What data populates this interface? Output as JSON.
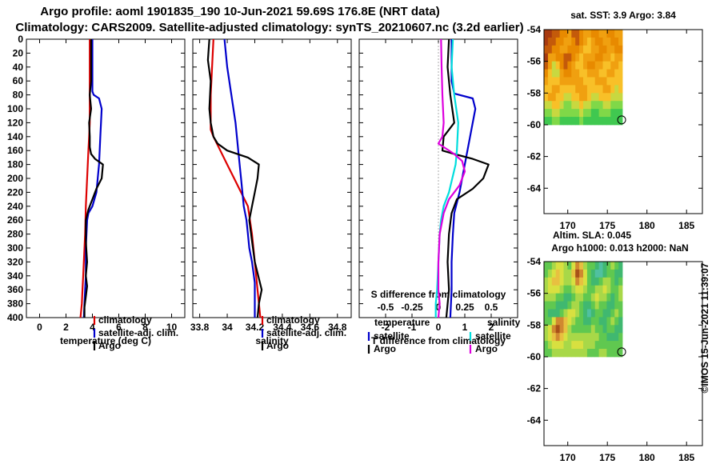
{
  "title_line1": "Argo profile: aoml 1901835_190 10-Jun-2021 59.69S 176.8E (NRT data)",
  "title_line2": "Climatology: CARS2009. Satellite-adjusted climatology: synTS_20210607.nc (3.2d earlier)",
  "credit": "©IMOS 15-Jun-2021 11:39:07",
  "colors": {
    "climatology": "#dd0000",
    "satellite": "#0000cc",
    "argo": "#000000",
    "sat_salinity": "#00dddd",
    "argo_salinity": "#dd00dd"
  },
  "chart_data": [
    {
      "type": "line",
      "name": "temperature-profile",
      "xlabel": "temperature (deg C)",
      "ylabel": "",
      "xlim": [
        -1,
        11
      ],
      "ylim": [
        400,
        0
      ],
      "xticks": [
        0,
        2,
        4,
        6,
        8,
        10
      ],
      "xtick_labels": [
        "0",
        "2",
        "4",
        "6",
        "8",
        "10"
      ],
      "yticks": [
        0,
        20,
        40,
        60,
        80,
        100,
        120,
        140,
        160,
        180,
        200,
        220,
        240,
        260,
        280,
        300,
        320,
        340,
        360,
        380,
        400
      ],
      "ytick_labels": [
        "0",
        "20",
        "40",
        "60",
        "80",
        "100",
        "120",
        "140",
        "160",
        "180",
        "200",
        "220",
        "240",
        "260",
        "280",
        "300",
        "320",
        "340",
        "360",
        "380",
        "400"
      ],
      "legend": [
        "climatology",
        "satellite-adj. clim.",
        "Argo"
      ],
      "series": [
        {
          "name": "climatology",
          "color": "#dd0000",
          "x": [
            3.8,
            3.8,
            3.8,
            3.8,
            3.75,
            3.7,
            3.6,
            3.5,
            3.45,
            3.4,
            3.35,
            3.3,
            3.25,
            3.2,
            3.1
          ],
          "y": [
            0,
            50,
            100,
            120,
            140,
            160,
            200,
            240,
            280,
            300,
            320,
            340,
            360,
            380,
            400
          ]
        },
        {
          "name": "satellite-adj. clim.",
          "color": "#0000cc",
          "x": [
            4.0,
            4.0,
            4.0,
            4.1,
            4.5,
            4.7,
            4.6,
            4.5,
            4.3,
            4.0,
            3.7,
            3.6,
            3.55,
            3.5,
            3.5,
            3.5,
            3.45,
            3.4,
            3.35
          ],
          "y": [
            0,
            40,
            75,
            80,
            85,
            100,
            140,
            180,
            220,
            240,
            250,
            260,
            280,
            300,
            320,
            340,
            360,
            380,
            400
          ]
        },
        {
          "name": "Argo",
          "color": "#000000",
          "x": [
            3.9,
            3.9,
            3.9,
            3.8,
            3.9,
            3.75,
            3.8,
            3.8,
            3.9,
            4.2,
            4.8,
            4.7,
            4.3,
            4.0,
            3.7,
            3.5,
            3.5,
            3.6,
            3.5,
            3.6,
            3.5,
            3.4,
            3.4
          ],
          "y": [
            0,
            30,
            60,
            80,
            100,
            120,
            140,
            155,
            165,
            172,
            180,
            200,
            215,
            230,
            245,
            260,
            290,
            320,
            340,
            355,
            370,
            385,
            400
          ]
        }
      ]
    },
    {
      "type": "line",
      "name": "salinity-profile",
      "xlabel": "salinity",
      "ylabel": "",
      "xlim": [
        33.75,
        34.9
      ],
      "ylim": [
        400,
        0
      ],
      "xticks": [
        33.8,
        34.0,
        34.2,
        34.4,
        34.6,
        34.8
      ],
      "xtick_labels": [
        "33.8",
        "34",
        "34.2",
        "34.4",
        "34.6",
        "34.8"
      ],
      "legend": [
        "climatology",
        "satellite-adj. clim.",
        "Argo"
      ],
      "series": [
        {
          "name": "climatology",
          "color": "#dd0000",
          "x": [
            33.9,
            33.89,
            33.88,
            33.88,
            33.88,
            33.9,
            33.95,
            34.0,
            34.05,
            34.1,
            34.15,
            34.18,
            34.2,
            34.22,
            34.24
          ],
          "y": [
            0,
            40,
            80,
            110,
            130,
            140,
            160,
            180,
            200,
            220,
            240,
            280,
            320,
            360,
            400
          ]
        },
        {
          "name": "satellite-adj. clim.",
          "color": "#0000cc",
          "x": [
            33.98,
            34.0,
            34.03,
            34.06,
            34.08,
            34.1,
            34.12,
            34.14,
            34.15,
            34.16,
            34.18,
            34.2,
            34.2,
            34.2
          ],
          "y": [
            0,
            40,
            80,
            120,
            160,
            200,
            240,
            260,
            280,
            300,
            320,
            350,
            380,
            400
          ]
        },
        {
          "name": "Argo",
          "color": "#000000",
          "x": [
            33.87,
            33.86,
            33.88,
            33.87,
            33.88,
            33.9,
            33.93,
            34.0,
            34.15,
            34.23,
            34.22,
            34.2,
            34.18,
            34.16,
            34.18,
            34.2,
            34.25,
            34.23,
            34.22
          ],
          "y": [
            0,
            30,
            60,
            100,
            120,
            140,
            150,
            160,
            170,
            180,
            200,
            220,
            240,
            260,
            290,
            320,
            360,
            380,
            400
          ]
        }
      ]
    },
    {
      "type": "line",
      "name": "difference-profile",
      "xlabel": "T difference from climatology",
      "secondary_xlabel": "S difference from climatology",
      "xlim": [
        -3,
        3
      ],
      "ylim": [
        400,
        0
      ],
      "xticks": [
        -2,
        -1,
        0,
        1,
        2
      ],
      "xtick_labels": [
        "-2",
        "-1",
        "0",
        "1",
        "2"
      ],
      "secondary_xticks": [
        -0.5,
        -0.25,
        0,
        0.25,
        0.5
      ],
      "secondary_xtick_labels": [
        "-0.5",
        "-0.25",
        "0",
        "0.25",
        "0.5"
      ],
      "legend_temperature_title": "temperature",
      "legend_salinity_title": "salinity",
      "legend_temperature": [
        "satellite",
        "Argo"
      ],
      "legend_salinity": [
        "satellite",
        "Argo"
      ],
      "series": [
        {
          "name": "T satellite",
          "color": "#0000cc",
          "x": [
            0.5,
            0.5,
            0.6,
            1.3,
            1.4,
            1.2,
            1.0,
            0.8,
            0.6,
            0.55,
            0.5,
            0.5,
            0.45
          ],
          "y": [
            0,
            60,
            78,
            85,
            100,
            140,
            180,
            220,
            250,
            280,
            320,
            360,
            400
          ]
        },
        {
          "name": "T Argo",
          "color": "#000000",
          "x": [
            0.4,
            0.35,
            0.45,
            0.6,
            0.2,
            0.15,
            0.6,
            1.3,
            1.9,
            1.7,
            1.3,
            0.7,
            0.5,
            0.4,
            0.35,
            0.4,
            0.3
          ],
          "y": [
            0,
            40,
            80,
            120,
            140,
            160,
            165,
            172,
            180,
            200,
            215,
            230,
            250,
            280,
            320,
            360,
            400
          ]
        },
        {
          "name": "S satellite",
          "color": "#00dddd",
          "x": [
            0.55,
            0.5,
            0.6,
            0.75,
            0.7,
            0.65,
            0.4,
            0.2,
            0.1,
            0.05,
            0.0,
            -0.05,
            -0.1,
            -0.1
          ],
          "y": [
            0,
            40,
            80,
            120,
            160,
            180,
            220,
            240,
            260,
            280,
            320,
            360,
            380,
            400
          ]
        },
        {
          "name": "S Argo",
          "color": "#dd00dd",
          "x": [
            0.1,
            0.12,
            0.15,
            0.2,
            0.15,
            0.0,
            0.6,
            0.9,
            1.0,
            0.8,
            0.4,
            0.2,
            0.05,
            0.0,
            0.0,
            0.05,
            0.0
          ],
          "y": [
            0,
            40,
            80,
            120,
            140,
            150,
            165,
            175,
            190,
            210,
            230,
            250,
            280,
            320,
            360,
            380,
            400
          ]
        }
      ]
    },
    {
      "type": "heatmap",
      "name": "sst-map",
      "title": "sat. SST: 3.9 Argo: 3.84",
      "xlim": [
        167,
        187
      ],
      "ylim": [
        -65.6,
        -54
      ],
      "xticks": [
        170,
        175,
        180,
        185
      ],
      "xtick_labels": [
        "170",
        "175",
        "180",
        "185"
      ],
      "yticks": [
        -54,
        -56,
        -58,
        -60,
        -62,
        -64
      ],
      "ytick_labels": [
        "-54",
        "-56",
        "-58",
        "-60",
        "-62",
        "-64"
      ],
      "data_extent": {
        "lon": [
          167,
          176.9
        ],
        "lat": [
          -60,
          -54
        ]
      },
      "argo_position": {
        "lon": 176.8,
        "lat": -59.69
      },
      "palette": [
        "#a83a10",
        "#c45a0a",
        "#e88a00",
        "#f0a010",
        "#f8c028",
        "#c8d840",
        "#80d848",
        "#40c850"
      ],
      "grid": [
        [
          0,
          0,
          1,
          1,
          2,
          2,
          3,
          1,
          1,
          2,
          3,
          3,
          2,
          2,
          3,
          3,
          2,
          2,
          3,
          3
        ],
        [
          0,
          1,
          1,
          2,
          2,
          3,
          3,
          2,
          1,
          2,
          3,
          4,
          3,
          2,
          2,
          3,
          3,
          2,
          2,
          3
        ],
        [
          1,
          1,
          2,
          2,
          3,
          3,
          2,
          2,
          2,
          3,
          4,
          4,
          3,
          3,
          2,
          2,
          3,
          3,
          2,
          2
        ],
        [
          0,
          3,
          3,
          2,
          2,
          1,
          1,
          2,
          3,
          4,
          3,
          3,
          3,
          2,
          2,
          3,
          3,
          4,
          3,
          3
        ],
        [
          1,
          3,
          5,
          4,
          2,
          1,
          2,
          3,
          4,
          4,
          3,
          2,
          2,
          3,
          3,
          4,
          4,
          3,
          3,
          4
        ],
        [
          2,
          4,
          5,
          5,
          3,
          2,
          2,
          3,
          3,
          4,
          4,
          3,
          3,
          3,
          4,
          4,
          3,
          3,
          4,
          4
        ],
        [
          3,
          4,
          4,
          4,
          3,
          3,
          3,
          3,
          3,
          3,
          4,
          4,
          4,
          3,
          3,
          3,
          4,
          4,
          4,
          4
        ],
        [
          4,
          4,
          3,
          3,
          4,
          4,
          4,
          4,
          3,
          3,
          3,
          4,
          4,
          4,
          4,
          3,
          3,
          4,
          5,
          4
        ],
        [
          4,
          3,
          3,
          4,
          4,
          5,
          5,
          4,
          4,
          3,
          3,
          4,
          5,
          5,
          4,
          4,
          4,
          5,
          5,
          5
        ],
        [
          5,
          5,
          4,
          4,
          5,
          6,
          6,
          5,
          5,
          4,
          5,
          5,
          6,
          6,
          6,
          5,
          5,
          6,
          6,
          6
        ],
        [
          6,
          6,
          5,
          5,
          6,
          6,
          6,
          6,
          6,
          5,
          6,
          6,
          7,
          7,
          6,
          6,
          6,
          7,
          7,
          7
        ],
        [
          7,
          7,
          6,
          6,
          7,
          7,
          7,
          7,
          7,
          6,
          7,
          7,
          7,
          7,
          7,
          7,
          7,
          7,
          7,
          7
        ]
      ]
    },
    {
      "type": "heatmap",
      "name": "sla-map",
      "title": "Altim. SLA: 0.045",
      "subtitle": "Argo h1000: 0.013 h2000: NaN",
      "xlim": [
        167,
        187
      ],
      "ylim": [
        -65.6,
        -54
      ],
      "xticks": [
        170,
        175,
        180,
        185
      ],
      "xtick_labels": [
        "170",
        "175",
        "180",
        "185"
      ],
      "yticks": [
        -54,
        -56,
        -58,
        -60,
        -62,
        -64
      ],
      "ytick_labels": [
        "-54",
        "-56",
        "-58",
        "-60",
        "-62",
        "-64"
      ],
      "data_extent": {
        "lon": [
          167,
          176.9
        ],
        "lat": [
          -60,
          -54
        ]
      },
      "argo_position": {
        "lon": 176.8,
        "lat": -59.69
      },
      "palette": [
        "#a85018",
        "#d08830",
        "#e8c040",
        "#d8e040",
        "#a8d848",
        "#60c850",
        "#40b870",
        "#50c0a0"
      ],
      "grid": [
        [
          5,
          5,
          4,
          3,
          3,
          4,
          5,
          3,
          1,
          2,
          4,
          5,
          5,
          6,
          7,
          6,
          5,
          4,
          5,
          6
        ],
        [
          5,
          4,
          3,
          2,
          3,
          4,
          4,
          2,
          0,
          1,
          3,
          5,
          6,
          7,
          7,
          6,
          5,
          5,
          6,
          6
        ],
        [
          4,
          3,
          2,
          2,
          3,
          4,
          4,
          3,
          1,
          2,
          3,
          5,
          6,
          6,
          5,
          4,
          4,
          5,
          6,
          5
        ],
        [
          4,
          3,
          3,
          3,
          4,
          5,
          5,
          4,
          3,
          3,
          4,
          5,
          5,
          4,
          4,
          3,
          4,
          5,
          5,
          4
        ],
        [
          4,
          4,
          4,
          5,
          5,
          6,
          6,
          5,
          4,
          4,
          5,
          5,
          4,
          3,
          4,
          4,
          5,
          6,
          5,
          4
        ],
        [
          5,
          5,
          5,
          6,
          6,
          6,
          5,
          4,
          4,
          5,
          6,
          6,
          5,
          4,
          5,
          5,
          6,
          6,
          5,
          5
        ],
        [
          5,
          6,
          6,
          6,
          5,
          4,
          3,
          3,
          4,
          5,
          6,
          7,
          6,
          5,
          5,
          6,
          6,
          5,
          4,
          5
        ],
        [
          5,
          5,
          3,
          1,
          1,
          2,
          3,
          4,
          5,
          5,
          6,
          6,
          5,
          5,
          6,
          6,
          5,
          4,
          5,
          6
        ],
        [
          4,
          3,
          1,
          0,
          1,
          2,
          4,
          5,
          5,
          5,
          5,
          5,
          4,
          5,
          5,
          6,
          5,
          5,
          6,
          6
        ],
        [
          4,
          3,
          2,
          1,
          2,
          3,
          4,
          4,
          4,
          4,
          4,
          4,
          4,
          4,
          5,
          5,
          6,
          6,
          6,
          5
        ],
        [
          5,
          4,
          3,
          3,
          3,
          4,
          4,
          3,
          3,
          3,
          4,
          4,
          4,
          5,
          5,
          5,
          5,
          5,
          5,
          5
        ],
        [
          5,
          5,
          4,
          4,
          4,
          4,
          4,
          4,
          4,
          4,
          4,
          5,
          5,
          5,
          4,
          4,
          5,
          5,
          5,
          5
        ]
      ]
    }
  ]
}
